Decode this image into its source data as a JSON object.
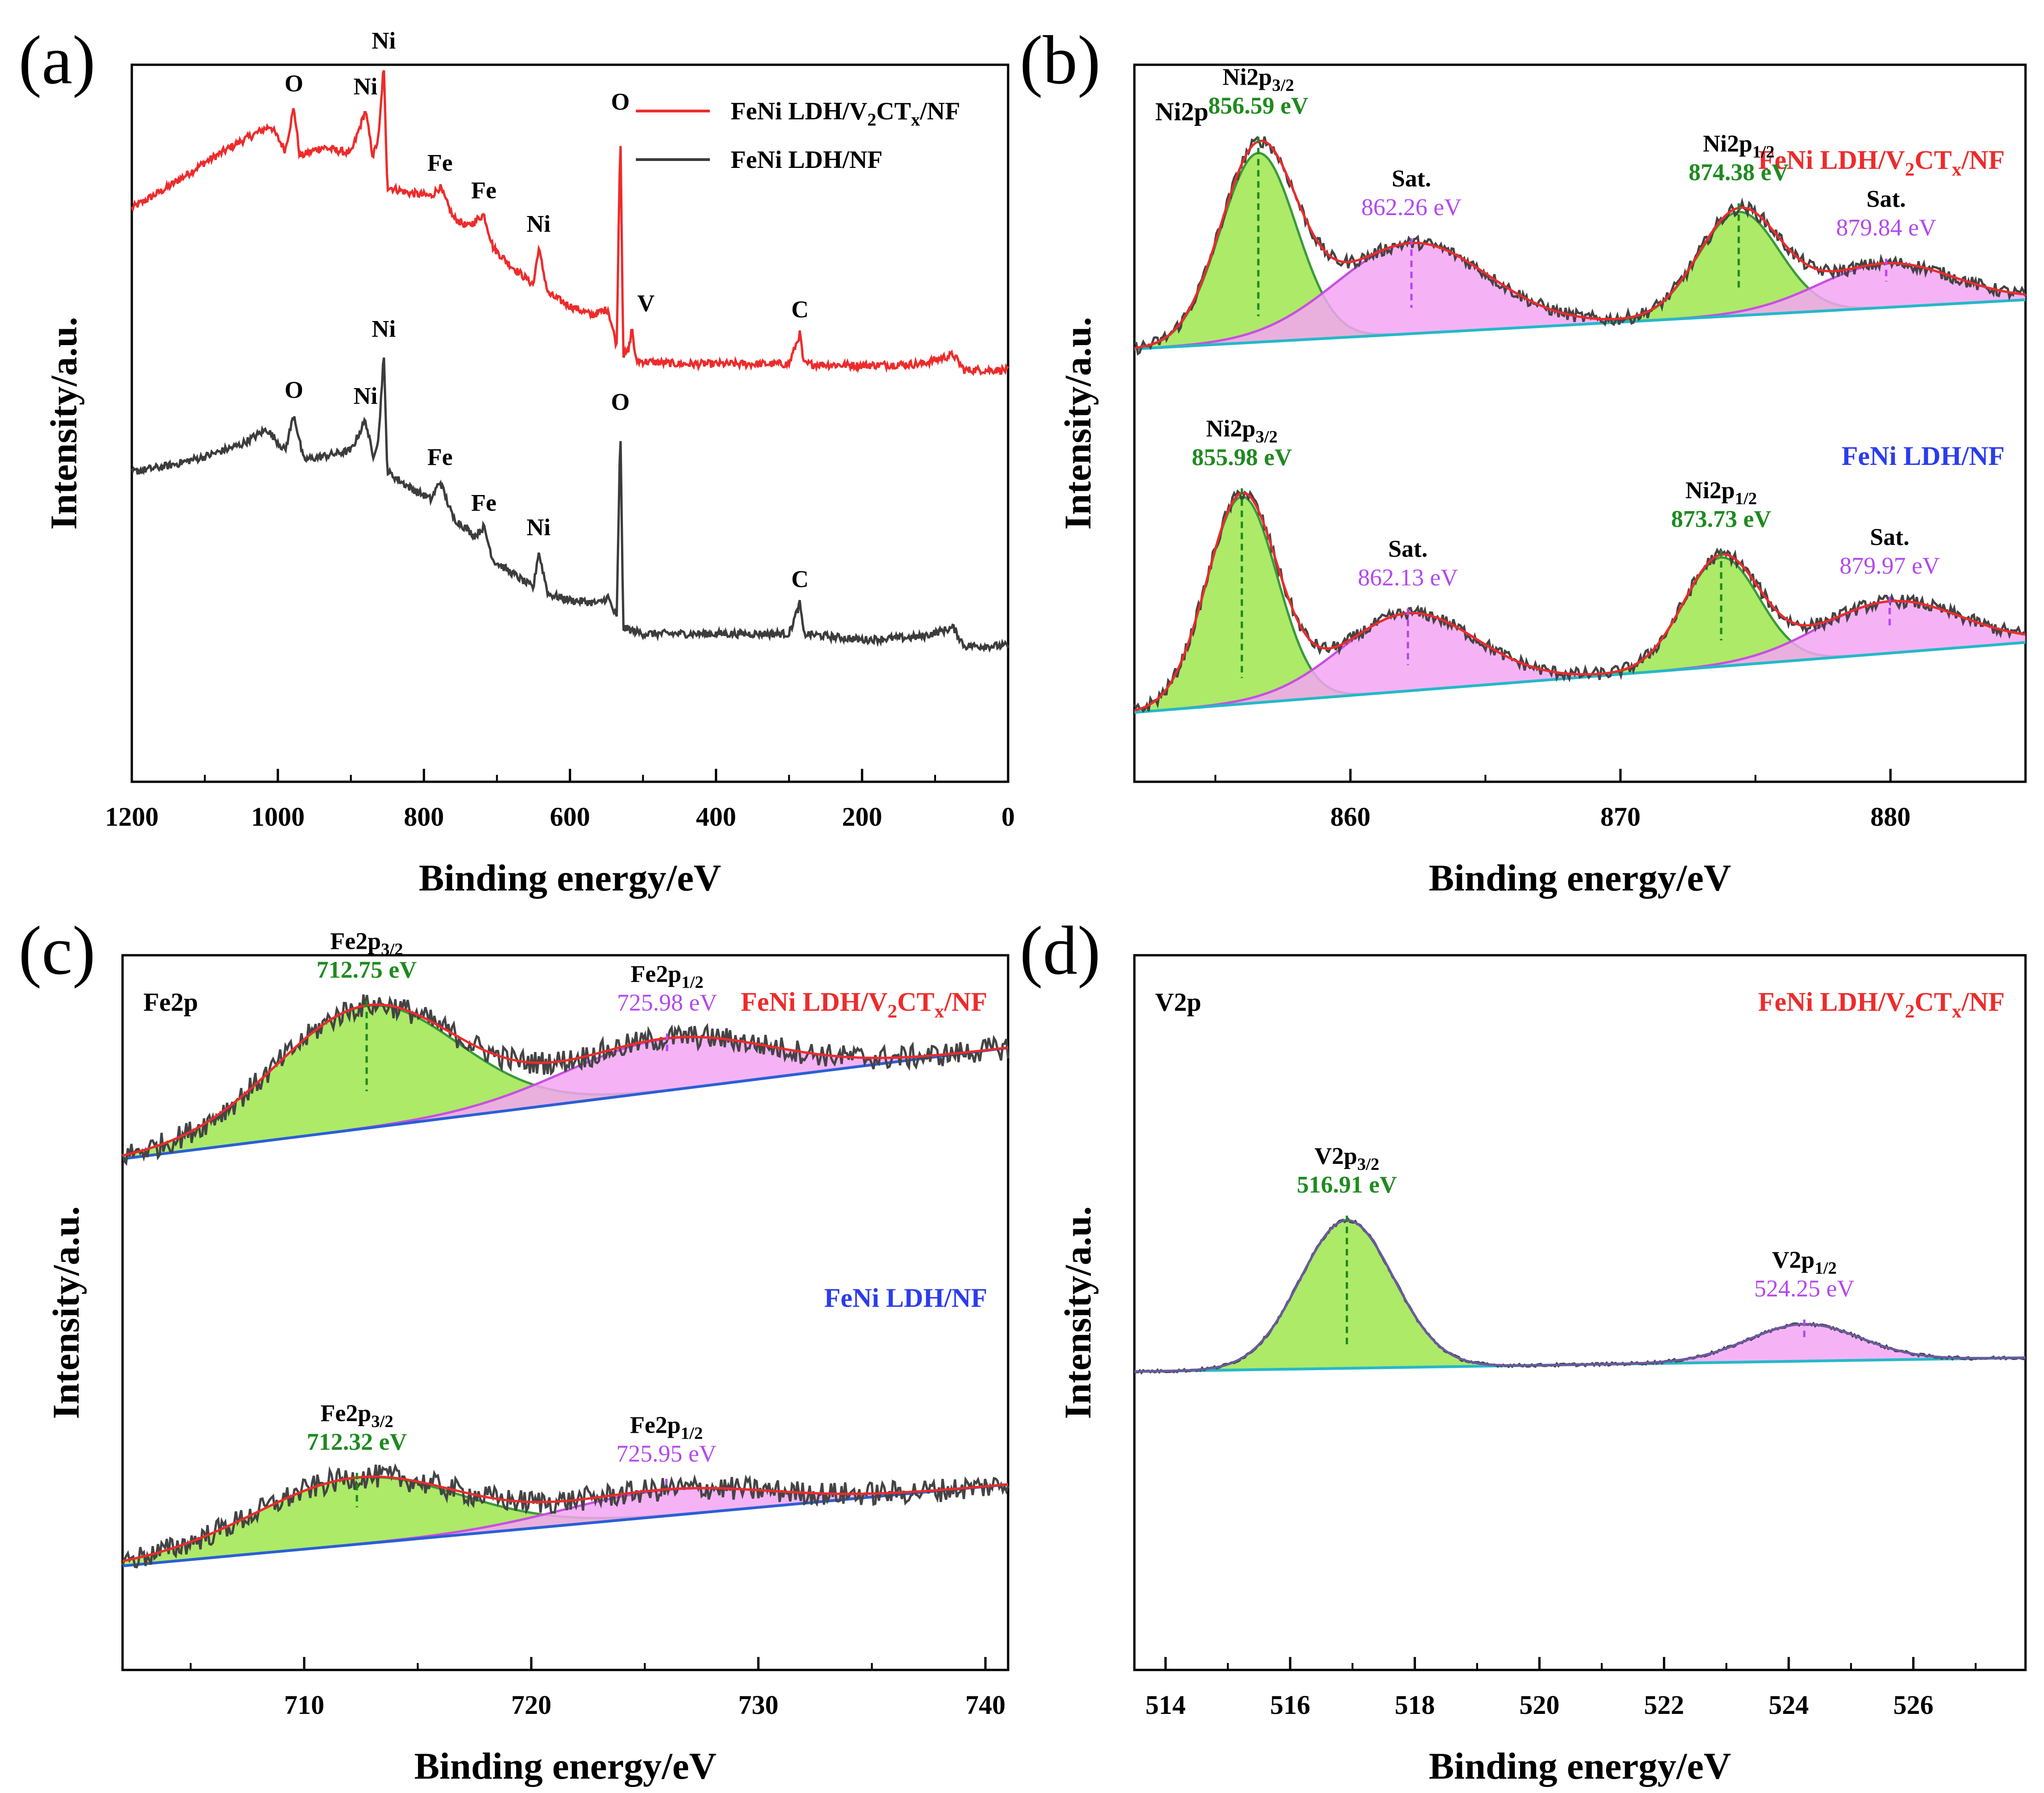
{
  "figure": {
    "panels": [
      {
        "id": "a",
        "label": "(a)",
        "type": "line",
        "title": "",
        "xlabel": "Binding energy/eV",
        "ylabel": "Intensity/a.u.",
        "xlim": [
          1200,
          0
        ],
        "xreversed": true,
        "xticks": [
          1200,
          1000,
          800,
          600,
          400,
          200,
          0
        ],
        "legend": [
          {
            "name": "FeNi LDH/V2CTx/NF",
            "color": "#ee2b2b"
          },
          {
            "name": "FeNi LDH/NF",
            "color": "#3c3c3c"
          }
        ],
        "series": [
          {
            "name": "FeNi LDH/V2CTx/NF",
            "color": "#ee2b2b",
            "points": [
              [
                1200,
                0.53
              ],
              [
                1150,
                0.6
              ],
              [
                1100,
                0.68
              ],
              [
                1050,
                0.75
              ],
              [
                1010,
                0.8
              ],
              [
                990,
                0.72
              ],
              [
                978,
                0.86
              ],
              [
                970,
                0.7
              ],
              [
                940,
                0.73
              ],
              [
                900,
                0.71
              ],
              [
                880,
                0.85
              ],
              [
                870,
                0.7
              ],
              [
                862,
                0.76
              ],
              [
                855,
                1.0
              ],
              [
                850,
                0.6
              ],
              [
                820,
                0.58
              ],
              [
                790,
                0.57
              ],
              [
                778,
                0.6
              ],
              [
                760,
                0.5
              ],
              [
                740,
                0.47
              ],
              [
                718,
                0.51
              ],
              [
                705,
                0.4
              ],
              [
                680,
                0.34
              ],
              [
                650,
                0.28
              ],
              [
                643,
                0.4
              ],
              [
                630,
                0.25
              ],
              [
                600,
                0.21
              ],
              [
                570,
                0.18
              ],
              [
                548,
                0.2
              ],
              [
                536,
                0.08
              ],
              [
                531,
                0.8
              ],
              [
                527,
                0.05
              ],
              [
                520,
                0.06
              ],
              [
                515,
                0.14
              ],
              [
                510,
                0.03
              ],
              [
                450,
                0.02
              ],
              [
                400,
                0.02
              ],
              [
                350,
                0.02
              ],
              [
                300,
                0.02
              ],
              [
                285,
                0.12
              ],
              [
                280,
                0.02
              ],
              [
                200,
                0.015
              ],
              [
                120,
                0.02
              ],
              [
                75,
                0.05
              ],
              [
                60,
                0.0
              ],
              [
                0,
                0.0
              ]
            ]
          },
          {
            "name": "FeNi LDH/NF",
            "color": "#3c3c3c",
            "points": [
              [
                1200,
                0.53
              ],
              [
                1150,
                0.55
              ],
              [
                1100,
                0.58
              ],
              [
                1050,
                0.62
              ],
              [
                1015,
                0.67
              ],
              [
                990,
                0.6
              ],
              [
                978,
                0.72
              ],
              [
                965,
                0.57
              ],
              [
                940,
                0.58
              ],
              [
                900,
                0.6
              ],
              [
                880,
                0.7
              ],
              [
                870,
                0.58
              ],
              [
                862,
                0.64
              ],
              [
                855,
                0.92
              ],
              [
                850,
                0.53
              ],
              [
                820,
                0.48
              ],
              [
                790,
                0.44
              ],
              [
                778,
                0.5
              ],
              [
                760,
                0.38
              ],
              [
                730,
                0.32
              ],
              [
                718,
                0.35
              ],
              [
                705,
                0.24
              ],
              [
                680,
                0.2
              ],
              [
                650,
                0.15
              ],
              [
                643,
                0.27
              ],
              [
                630,
                0.13
              ],
              [
                600,
                0.11
              ],
              [
                560,
                0.1
              ],
              [
                548,
                0.12
              ],
              [
                536,
                0.05
              ],
              [
                531,
                0.68
              ],
              [
                527,
                0.02
              ],
              [
                500,
                0.0
              ],
              [
                450,
                0.0
              ],
              [
                300,
                0.0
              ],
              [
                285,
                0.1
              ],
              [
                280,
                0.0
              ],
              [
                200,
                -0.02
              ],
              [
                120,
                -0.01
              ],
              [
                75,
                0.02
              ],
              [
                60,
                -0.04
              ],
              [
                0,
                -0.04
              ]
            ]
          }
        ],
        "annotations": {
          "red": [
            {
              "text": "O",
              "x": 978
            },
            {
              "text": "Ni",
              "x": 880
            },
            {
              "text": "Ni",
              "x": 855
            },
            {
              "text": "Fe",
              "x": 778
            },
            {
              "text": "Fe",
              "x": 718
            },
            {
              "text": "Ni",
              "x": 643
            },
            {
              "text": "O",
              "x": 531
            },
            {
              "text": "V",
              "x": 515
            },
            {
              "text": "C",
              "x": 285
            }
          ],
          "black": [
            {
              "text": "O",
              "x": 978
            },
            {
              "text": "Ni",
              "x": 880
            },
            {
              "text": "Ni",
              "x": 855
            },
            {
              "text": "Fe",
              "x": 778
            },
            {
              "text": "Fe",
              "x": 718
            },
            {
              "text": "Ni",
              "x": 643
            },
            {
              "text": "O",
              "x": 531
            },
            {
              "text": "C",
              "x": 285
            }
          ]
        }
      },
      {
        "id": "b",
        "label": "(b)",
        "type": "line",
        "region": "Ni2p",
        "xlabel": "Binding energy/eV",
        "ylabel": "Intensity/a.u.",
        "xlim": [
          852,
          885
        ],
        "xticks": [
          860,
          870,
          880
        ],
        "samples": [
          {
            "name": "FeNi LDH/V2CTx/NF",
            "name_color": "#ee2b2b",
            "background": [
              0.26,
              0.45
            ],
            "peaks": [
              {
                "label": "Ni2p3/2",
                "energy": "856.59 eV",
                "center": 856.59,
                "height": 0.73,
                "width": 1.4,
                "color": "green"
              },
              {
                "label": "Sat.",
                "energy": "862.26 eV",
                "center": 862.26,
                "height": 0.35,
                "width": 2.8,
                "color": "magenta"
              },
              {
                "label": "Ni2p1/2",
                "energy": "874.38 eV",
                "center": 874.38,
                "height": 0.4,
                "width": 1.5,
                "color": "green"
              },
              {
                "label": "Sat.",
                "energy": "879.84 eV",
                "center": 879.84,
                "height": 0.17,
                "width": 2.5,
                "color": "magenta"
              }
            ]
          },
          {
            "name": "FeNi LDH/NF",
            "name_color": "#2b3cee",
            "background": [
              0.0,
              0.27
            ],
            "peaks": [
              {
                "label": "Ni2p3/2",
                "energy": "855.98 eV",
                "center": 855.98,
                "height": 0.8,
                "width": 1.3,
                "color": "green"
              },
              {
                "label": "Sat.",
                "energy": "862.13 eV",
                "center": 862.13,
                "height": 0.3,
                "width": 2.5,
                "color": "magenta"
              },
              {
                "label": "Ni2p1/2",
                "energy": "873.73 eV",
                "center": 873.73,
                "height": 0.42,
                "width": 1.4,
                "color": "green"
              },
              {
                "label": "Sat.",
                "energy": "879.97 eV",
                "center": 879.97,
                "height": 0.2,
                "width": 2.6,
                "color": "magenta"
              }
            ]
          }
        ]
      },
      {
        "id": "c",
        "label": "(c)",
        "type": "line",
        "region": "Fe2p",
        "xlabel": "Binding energy/eV",
        "ylabel": "Intensity/a.u.",
        "xlim": [
          702,
          741
        ],
        "xticks": [
          710,
          720,
          730,
          740
        ],
        "samples": [
          {
            "name": "FeNi LDH/V2CTx/NF",
            "name_color": "#ee2b2b",
            "background": [
              0.3,
              0.6
            ],
            "peaks": [
              {
                "label": "Fe2p3/2",
                "energy": "712.75 eV",
                "center": 712.75,
                "height": 0.33,
                "width": 4.0,
                "color": "green"
              },
              {
                "label": "Fe2p1/2",
                "energy": "725.98 eV",
                "center": 725.98,
                "height": 0.14,
                "width": 4.5,
                "color": "magenta"
              }
            ]
          },
          {
            "name": "FeNi LDH/NF",
            "name_color": "#2b3cee",
            "background": [
              0.0,
              0.22
            ],
            "peaks": [
              {
                "label": "Fe2p3/2",
                "energy": "712.32 eV",
                "center": 712.32,
                "height": 0.18,
                "width": 4.5,
                "color": "green"
              },
              {
                "label": "Fe2p1/2",
                "energy": "725.95 eV",
                "center": 725.95,
                "height": 0.07,
                "width": 4.5,
                "color": "magenta"
              }
            ]
          }
        ]
      },
      {
        "id": "d",
        "label": "(d)",
        "type": "line",
        "region": "V2p",
        "xlabel": "Binding energy/eV",
        "ylabel": "Intensity/a.u.",
        "xlim": [
          513.5,
          527.8
        ],
        "xticks": [
          514,
          516,
          518,
          520,
          522,
          524,
          526
        ],
        "samples": [
          {
            "name": "FeNi LDH/V2CTx/NF",
            "name_color": "#ee2b2b",
            "background": [
              0.0,
              0.06
            ],
            "peaks": [
              {
                "label": "V2p3/2",
                "energy": "516.91 eV",
                "center": 516.91,
                "height": 0.64,
                "width": 0.75,
                "color": "green"
              },
              {
                "label": "V2p1/2",
                "energy": "524.25 eV",
                "center": 524.25,
                "height": 0.16,
                "width": 0.9,
                "color": "magenta"
              }
            ]
          }
        ]
      }
    ]
  },
  "chart_data": [
    {
      "type": "line",
      "panel": "(a)",
      "title": "",
      "xlabel": "Binding energy/eV",
      "ylabel": "Intensity/a.u.",
      "xlim": [
        1200,
        0
      ],
      "series": [
        {
          "name": "FeNi LDH/V2CTx/NF",
          "peaks_eV": [
            978,
            880,
            855,
            778,
            718,
            643,
            531,
            515,
            285
          ]
        },
        {
          "name": "FeNi LDH/NF",
          "peaks_eV": [
            978,
            880,
            855,
            778,
            718,
            643,
            531,
            285
          ]
        }
      ]
    },
    {
      "type": "line",
      "panel": "(b)",
      "title": "Ni2p",
      "xlabel": "Binding energy/eV",
      "ylabel": "Intensity/a.u.",
      "xlim": [
        852,
        885
      ],
      "series": [
        {
          "name": "FeNi LDH/V2CTx/NF",
          "peaks_eV": [
            856.59,
            862.26,
            874.38,
            879.84
          ]
        },
        {
          "name": "FeNi LDH/NF",
          "peaks_eV": [
            855.98,
            862.13,
            873.73,
            879.97
          ]
        }
      ]
    },
    {
      "type": "line",
      "panel": "(c)",
      "title": "Fe2p",
      "xlabel": "Binding energy/eV",
      "ylabel": "Intensity/a.u.",
      "xlim": [
        702,
        741
      ],
      "series": [
        {
          "name": "FeNi LDH/V2CTx/NF",
          "peaks_eV": [
            712.75,
            725.98
          ]
        },
        {
          "name": "FeNi LDH/NF",
          "peaks_eV": [
            712.32,
            725.95
          ]
        }
      ]
    },
    {
      "type": "line",
      "panel": "(d)",
      "title": "V2p",
      "xlabel": "Binding energy/eV",
      "ylabel": "Intensity/a.u.",
      "xlim": [
        513.5,
        527.8
      ],
      "series": [
        {
          "name": "FeNi LDH/V2CTx/NF",
          "peaks_eV": [
            516.91,
            524.25
          ]
        }
      ]
    }
  ]
}
